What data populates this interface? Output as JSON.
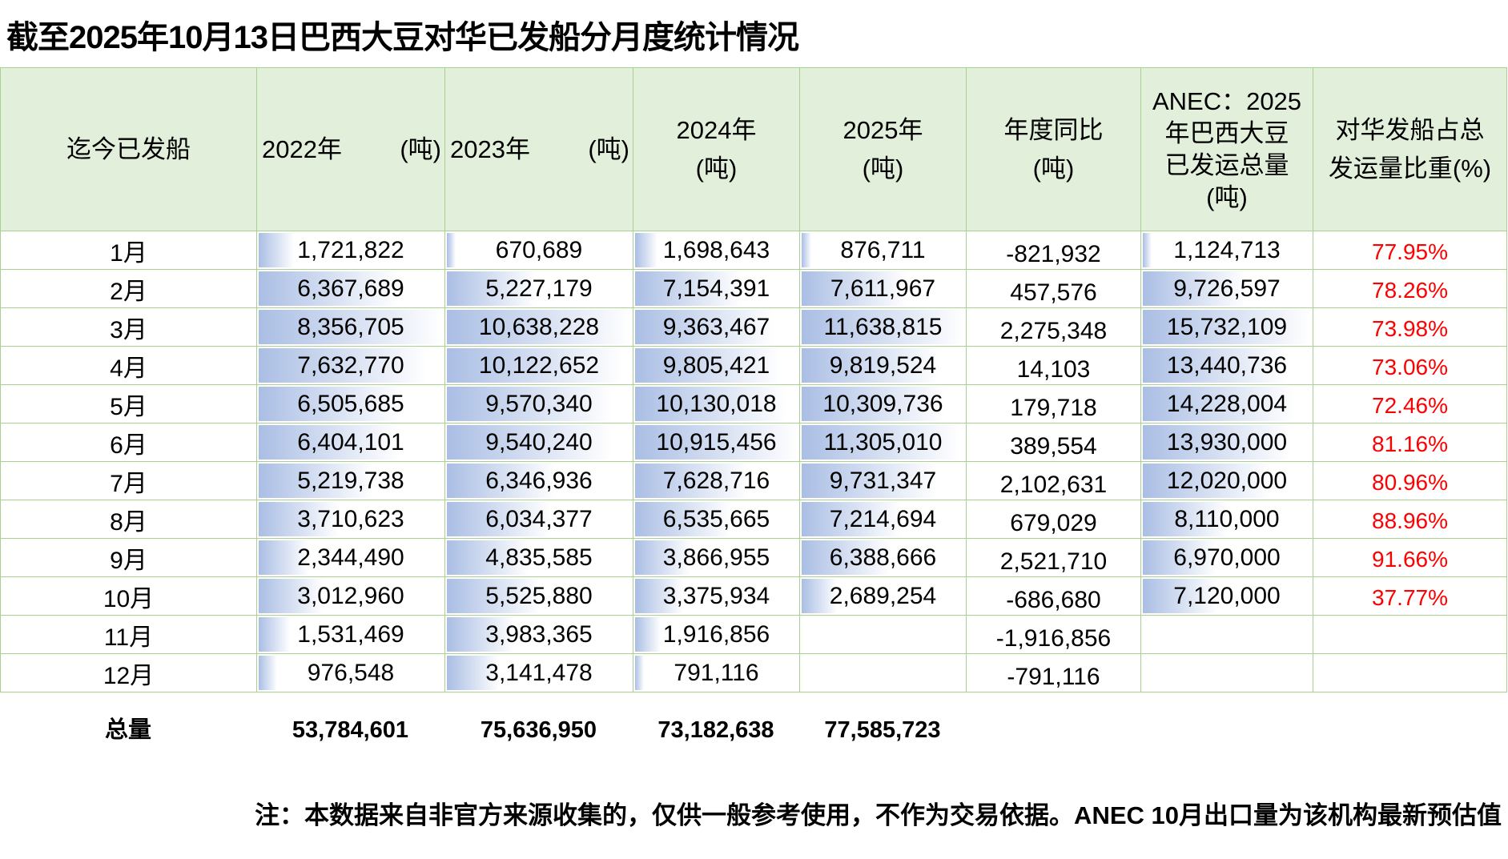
{
  "title": "截至2025年10月13日巴西大豆对华已发船分月度统计情况",
  "headers": {
    "month": "迄今已发船",
    "y2022": "2022年",
    "y2022_unit": "(吨)",
    "y2023": "2023年",
    "y2023_unit": "(吨)",
    "y2024": "2024年",
    "y2024_unit": "(吨)",
    "y2025": "2025年",
    "y2025_unit": "(吨)",
    "yoy": "年度同比",
    "yoy_unit": "(吨)",
    "anec_l1": "ANEC：2025",
    "anec_l2": "年巴西大豆",
    "anec_l3": "已发运总量",
    "anec_l4": "(吨)",
    "pct_l1": "对华发船占总",
    "pct_l2": "发运量比重(%)"
  },
  "rows": [
    {
      "month": "1月",
      "y2022": "1,721,822",
      "y2023": "670,689",
      "y2024": "1,698,643",
      "y2025": "876,711",
      "yoy": "-821,932",
      "anec": "1,124,713",
      "pct": "77.95%"
    },
    {
      "month": "2月",
      "y2022": "6,367,689",
      "y2023": "5,227,179",
      "y2024": "7,154,391",
      "y2025": "7,611,967",
      "yoy": "457,576",
      "anec": "9,726,597",
      "pct": "78.26%"
    },
    {
      "month": "3月",
      "y2022": "8,356,705",
      "y2023": "10,638,228",
      "y2024": "9,363,467",
      "y2025": "11,638,815",
      "yoy": "2,275,348",
      "anec": "15,732,109",
      "pct": "73.98%"
    },
    {
      "month": "4月",
      "y2022": "7,632,770",
      "y2023": "10,122,652",
      "y2024": "9,805,421",
      "y2025": "9,819,524",
      "yoy": "14,103",
      "anec": "13,440,736",
      "pct": "73.06%"
    },
    {
      "month": "5月",
      "y2022": "6,505,685",
      "y2023": "9,570,340",
      "y2024": "10,130,018",
      "y2025": "10,309,736",
      "yoy": "179,718",
      "anec": "14,228,004",
      "pct": "72.46%"
    },
    {
      "month": "6月",
      "y2022": "6,404,101",
      "y2023": "9,540,240",
      "y2024": "10,915,456",
      "y2025": "11,305,010",
      "yoy": "389,554",
      "anec": "13,930,000",
      "pct": "81.16%"
    },
    {
      "month": "7月",
      "y2022": "5,219,738",
      "y2023": "6,346,936",
      "y2024": "7,628,716",
      "y2025": "9,731,347",
      "yoy": "2,102,631",
      "anec": "12,020,000",
      "pct": "80.96%"
    },
    {
      "month": "8月",
      "y2022": "3,710,623",
      "y2023": "6,034,377",
      "y2024": "6,535,665",
      "y2025": "7,214,694",
      "yoy": "679,029",
      "anec": "8,110,000",
      "pct": "88.96%"
    },
    {
      "month": "9月",
      "y2022": "2,344,490",
      "y2023": "4,835,585",
      "y2024": "3,866,955",
      "y2025": "6,388,666",
      "yoy": "2,521,710",
      "anec": "6,970,000",
      "pct": "91.66%"
    },
    {
      "month": "10月",
      "y2022": "3,012,960",
      "y2023": "5,525,880",
      "y2024": "3,375,934",
      "y2025": "2,689,254",
      "yoy": "-686,680",
      "anec": "7,120,000",
      "pct": "37.77%"
    },
    {
      "month": "11月",
      "y2022": "1,531,469",
      "y2023": "3,983,365",
      "y2024": "1,916,856",
      "y2025": "",
      "yoy": "-1,916,856",
      "anec": "",
      "pct": ""
    },
    {
      "month": "12月",
      "y2022": "976,548",
      "y2023": "3,141,478",
      "y2024": "791,116",
      "y2025": "",
      "yoy": "-791,116",
      "anec": "",
      "pct": ""
    }
  ],
  "totals": {
    "label": "总量",
    "y2022": "53,784,601",
    "y2023": "75,636,950",
    "y2024": "73,182,638",
    "y2025": "77,585,723"
  },
  "note": "注：本数据来自非官方来源收集的，仅供一般参考使用，不作为交易依据。ANEC 10月出口量为该机构最新预估值"
}
